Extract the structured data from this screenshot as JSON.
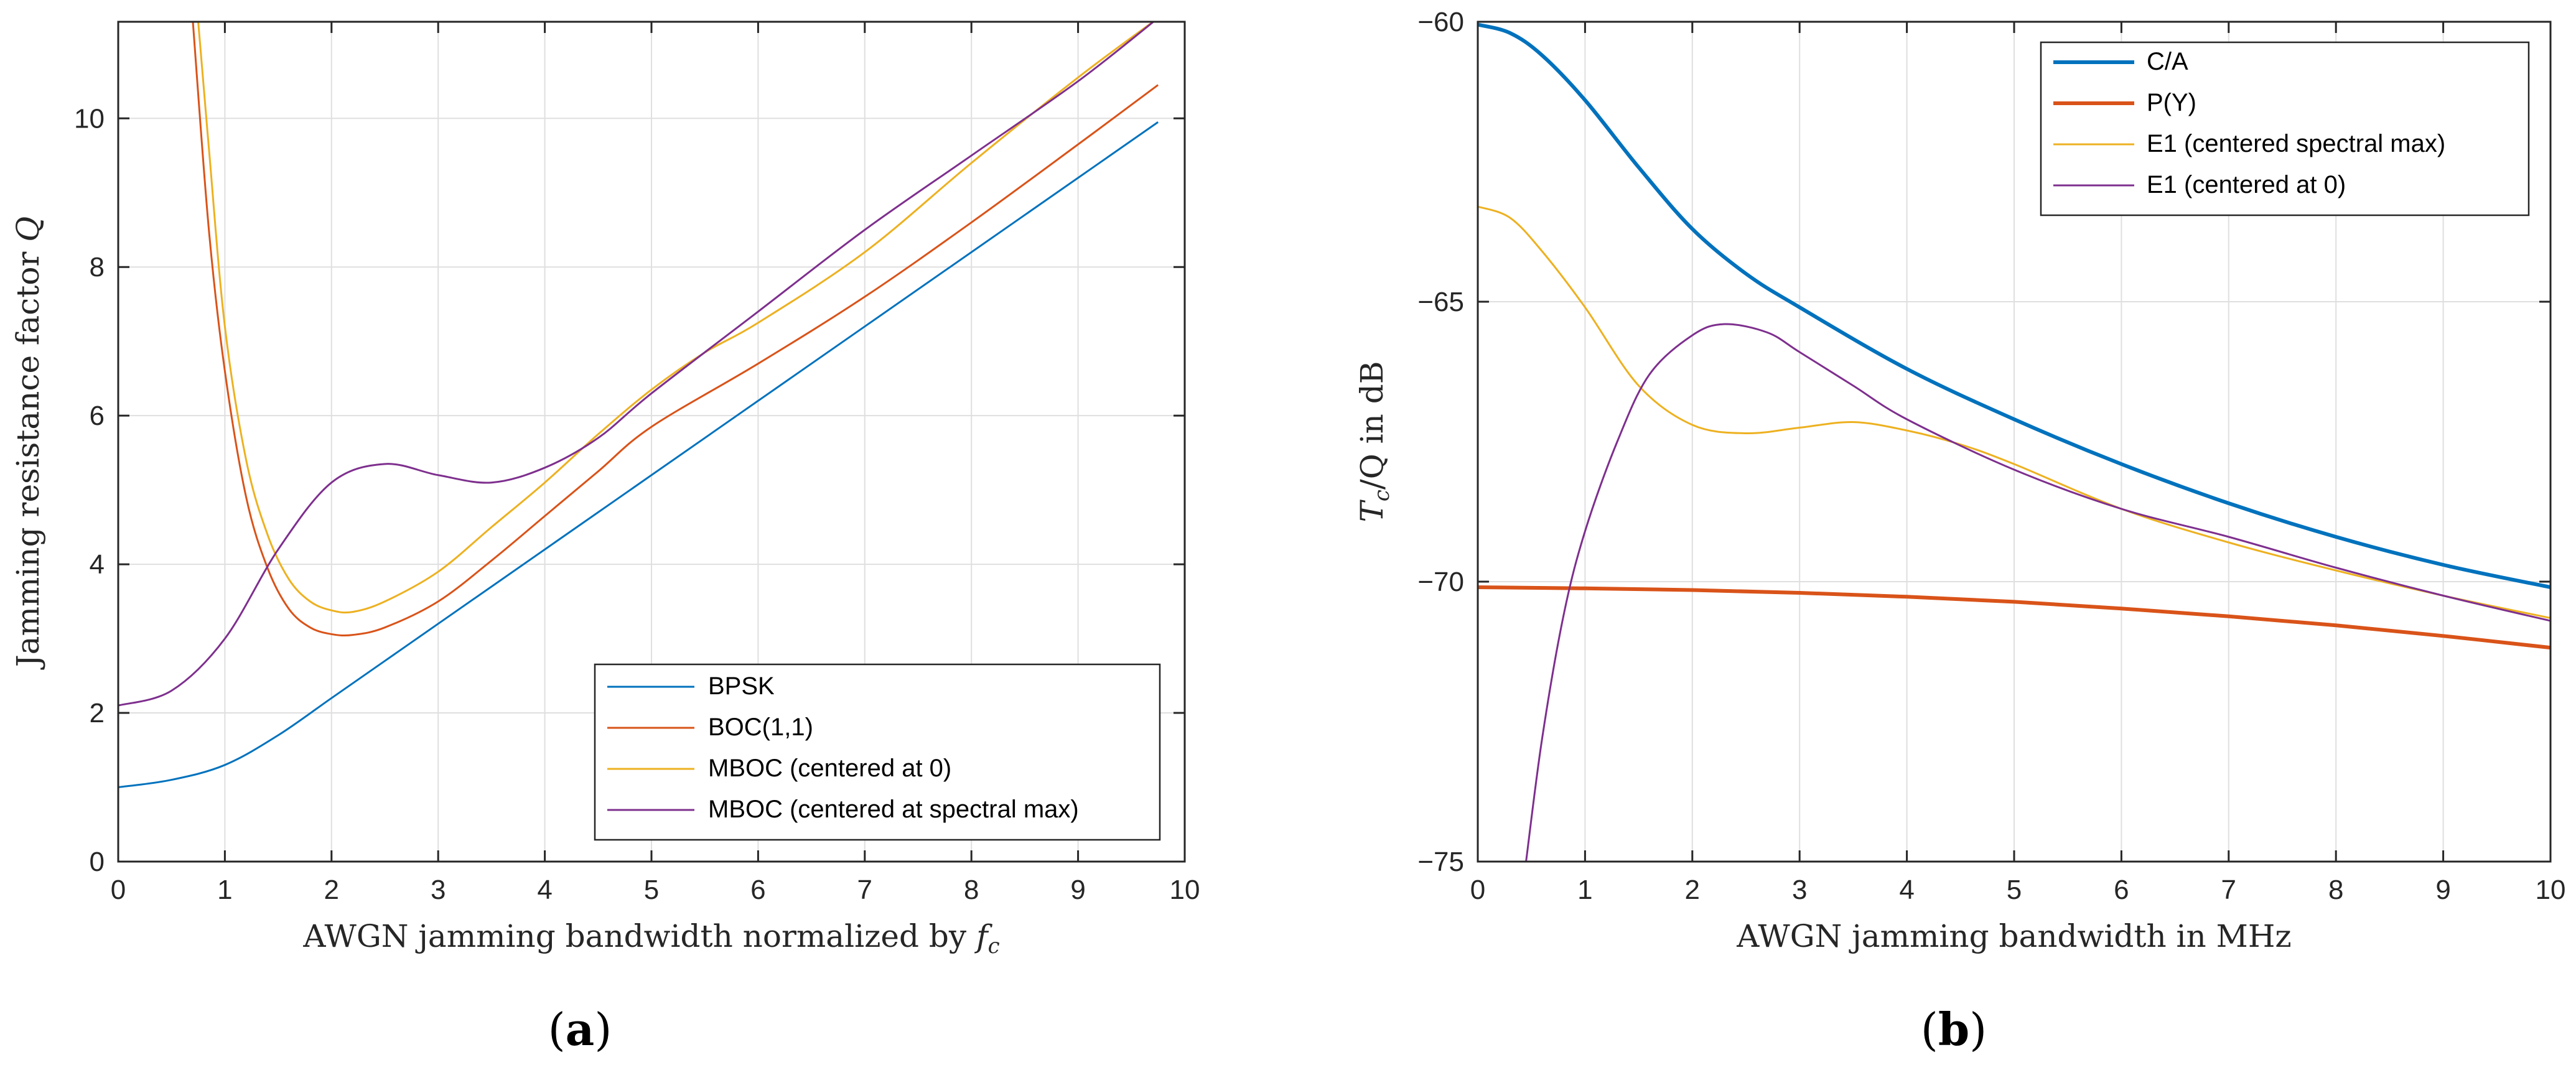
{
  "figure": {
    "panel_a_caption": [
      "(",
      "a",
      ")"
    ],
    "panel_b_caption": [
      "(",
      "b",
      ")"
    ]
  },
  "chart_data": [
    {
      "type": "line",
      "id": "a",
      "title": "",
      "xlabel": "AWGN jamming bandwidth normalized by f_c",
      "ylabel": "Jamming resistance factor Q",
      "xlim": [
        0,
        10
      ],
      "ylim": [
        0,
        11.3
      ],
      "xticks": [
        0,
        1,
        2,
        3,
        4,
        5,
        6,
        7,
        8,
        9,
        10
      ],
      "yticks": [
        0,
        2,
        4,
        6,
        8,
        10
      ],
      "grid": true,
      "legend_position": "bottom-right",
      "series": [
        {
          "name": "BPSK",
          "color": "#0072BD",
          "x": [
            0,
            0.5,
            1,
            1.5,
            2,
            2.5,
            3,
            3.5,
            4,
            4.5,
            5,
            6,
            7,
            8,
            9,
            9.75
          ],
          "y": [
            1.0,
            1.1,
            1.3,
            1.7,
            2.2,
            2.7,
            3.2,
            3.7,
            4.2,
            4.7,
            5.2,
            6.2,
            7.2,
            8.2,
            9.2,
            9.95
          ]
        },
        {
          "name": "BOC(1,1)",
          "color": "#D95319",
          "x": [
            0.7,
            0.85,
            1,
            1.2,
            1.4,
            1.6,
            1.8,
            2,
            2.2,
            2.5,
            3,
            3.5,
            4,
            4.5,
            5,
            6,
            7,
            8,
            9,
            9.75
          ],
          "y": [
            11.3,
            8.5,
            6.6,
            4.9,
            3.95,
            3.4,
            3.15,
            3.06,
            3.05,
            3.15,
            3.5,
            4.05,
            4.65,
            5.25,
            5.85,
            6.7,
            7.6,
            8.6,
            9.65,
            10.45
          ]
        },
        {
          "name": "MBOC (centered at 0)",
          "color": "#EDB120",
          "x": [
            0.75,
            0.85,
            1,
            1.2,
            1.4,
            1.6,
            1.8,
            2,
            2.2,
            2.5,
            3,
            3.5,
            4,
            4.5,
            5,
            5.5,
            6,
            7,
            8,
            9,
            9.75
          ],
          "y": [
            11.3,
            9.6,
            7.2,
            5.4,
            4.4,
            3.8,
            3.5,
            3.38,
            3.36,
            3.5,
            3.9,
            4.5,
            5.1,
            5.75,
            6.35,
            6.85,
            7.25,
            8.2,
            9.4,
            10.55,
            11.35
          ]
        },
        {
          "name": "MBOC (centered at spectral max)",
          "color": "#7E2F8E",
          "x": [
            0,
            0.5,
            1,
            1.5,
            2,
            2.5,
            3,
            3.5,
            4,
            4.5,
            5,
            6,
            7,
            8,
            9,
            9.75
          ],
          "y": [
            2.1,
            2.3,
            3.0,
            4.2,
            5.1,
            5.35,
            5.2,
            5.1,
            5.3,
            5.7,
            6.3,
            7.4,
            8.5,
            9.5,
            10.5,
            11.35
          ]
        }
      ]
    },
    {
      "type": "line",
      "id": "b",
      "title": "",
      "xlabel": "AWGN jamming bandwidth in MHz",
      "ylabel": "T_c/Q in dB",
      "xlim": [
        0,
        10
      ],
      "ylim": [
        -75,
        -60
      ],
      "xticks": [
        0,
        1,
        2,
        3,
        4,
        5,
        6,
        7,
        8,
        9,
        10
      ],
      "yticks": [
        -75,
        -70,
        -65,
        -60
      ],
      "grid": true,
      "legend_position": "top-right",
      "series": [
        {
          "name": "C/A",
          "color": "#0072BD",
          "x": [
            0,
            0.3,
            0.6,
            1,
            1.5,
            2,
            2.5,
            3,
            4,
            5,
            6,
            7,
            8,
            9,
            10
          ],
          "y": [
            -60.05,
            -60.2,
            -60.6,
            -61.4,
            -62.6,
            -63.7,
            -64.5,
            -65.1,
            -66.2,
            -67.1,
            -67.9,
            -68.6,
            -69.2,
            -69.7,
            -70.1
          ],
          "width": 6
        },
        {
          "name": "P(Y)",
          "color": "#D95319",
          "x": [
            0,
            1,
            2,
            3,
            4,
            5,
            6,
            7,
            8,
            9,
            10
          ],
          "y": [
            -70.1,
            -70.12,
            -70.15,
            -70.2,
            -70.27,
            -70.36,
            -70.48,
            -70.62,
            -70.78,
            -70.97,
            -71.18
          ],
          "width": 6
        },
        {
          "name": "E1 (centered spectral max)",
          "color": "#EDB120",
          "x": [
            0,
            0.3,
            0.6,
            1,
            1.5,
            2,
            2.5,
            3,
            3.5,
            4,
            4.5,
            5,
            6,
            7,
            8,
            9,
            10
          ],
          "y": [
            -63.3,
            -63.5,
            -64.1,
            -65.1,
            -66.5,
            -67.2,
            -67.35,
            -67.25,
            -67.15,
            -67.3,
            -67.55,
            -67.9,
            -68.7,
            -69.3,
            -69.8,
            -70.25,
            -70.65
          ],
          "width": 3
        },
        {
          "name": "E1 (centered at 0)",
          "color": "#7E2F8E",
          "x": [
            0.45,
            0.6,
            0.8,
            1,
            1.3,
            1.6,
            2,
            2.3,
            2.7,
            3,
            3.5,
            4,
            5,
            6,
            7,
            8,
            9,
            10
          ],
          "y": [
            -75,
            -72.8,
            -70.6,
            -69.1,
            -67.5,
            -66.3,
            -65.6,
            -65.4,
            -65.55,
            -65.9,
            -66.5,
            -67.1,
            -68.0,
            -68.7,
            -69.2,
            -69.75,
            -70.25,
            -70.7
          ],
          "width": 3
        }
      ]
    }
  ]
}
